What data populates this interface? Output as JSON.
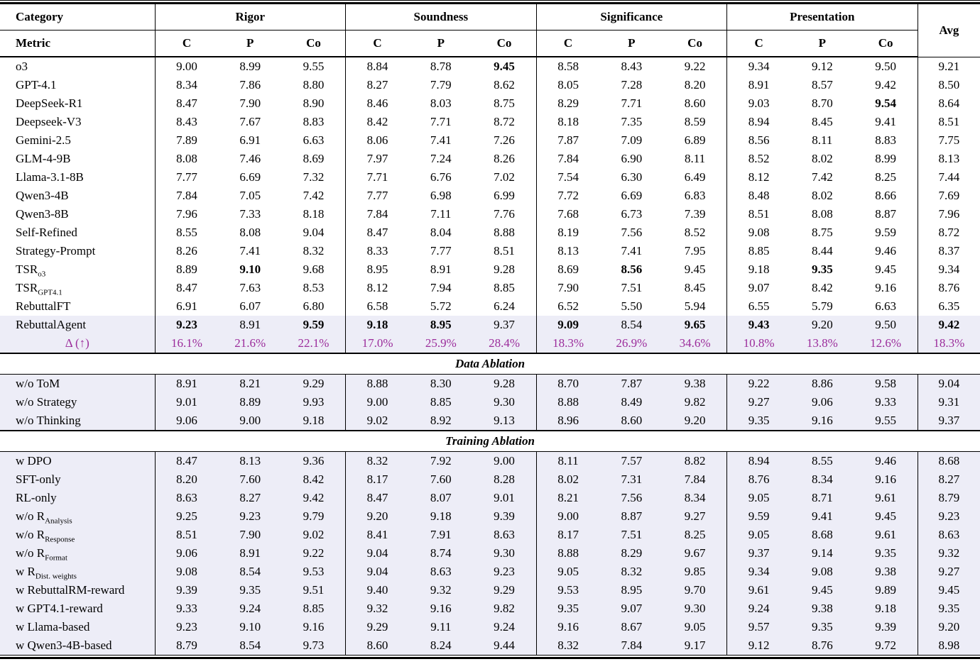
{
  "header": {
    "category_label": "Category",
    "metric_label": "Metric",
    "groups": [
      "Rigor",
      "Soundness",
      "Significance",
      "Presentation"
    ],
    "avg_label": "Avg",
    "sub_metrics": [
      "C",
      "P",
      "Co"
    ]
  },
  "colors": {
    "delta_purple": "#9B2C9B",
    "highlight_row_bg": "#EDEDF7",
    "rule_black": "#000000"
  },
  "sections": [
    {
      "title": "",
      "rows": [
        {
          "label": "o3",
          "values": [
            "9.00",
            "8.99",
            "9.55",
            "8.84",
            "8.78",
            "9.45",
            "8.58",
            "8.43",
            "9.22",
            "9.34",
            "9.12",
            "9.50",
            "9.21"
          ],
          "bold": [
            5
          ]
        },
        {
          "label": "GPT-4.1",
          "values": [
            "8.34",
            "7.86",
            "8.80",
            "8.27",
            "7.79",
            "8.62",
            "8.05",
            "7.28",
            "8.20",
            "8.91",
            "8.57",
            "9.42",
            "8.50"
          ],
          "bold": []
        },
        {
          "label": "DeepSeek-R1",
          "values": [
            "8.47",
            "7.90",
            "8.90",
            "8.46",
            "8.03",
            "8.75",
            "8.29",
            "7.71",
            "8.60",
            "9.03",
            "8.70",
            "9.54",
            "8.64"
          ],
          "bold": [
            11
          ]
        },
        {
          "label": "Deepseek-V3",
          "values": [
            "8.43",
            "7.67",
            "8.83",
            "8.42",
            "7.71",
            "8.72",
            "8.18",
            "7.35",
            "8.59",
            "8.94",
            "8.45",
            "9.41",
            "8.51"
          ],
          "bold": []
        },
        {
          "label": "Gemini-2.5",
          "values": [
            "7.89",
            "6.91",
            "6.63",
            "8.06",
            "7.41",
            "7.26",
            "7.87",
            "7.09",
            "6.89",
            "8.56",
            "8.11",
            "8.83",
            "7.75"
          ],
          "bold": []
        },
        {
          "label": "GLM-4-9B",
          "values": [
            "8.08",
            "7.46",
            "8.69",
            "7.97",
            "7.24",
            "8.26",
            "7.84",
            "6.90",
            "8.11",
            "8.52",
            "8.02",
            "8.99",
            "8.13"
          ],
          "bold": []
        },
        {
          "label": "Llama-3.1-8B",
          "values": [
            "7.77",
            "6.69",
            "7.32",
            "7.71",
            "6.76",
            "7.02",
            "7.54",
            "6.30",
            "6.49",
            "8.12",
            "7.42",
            "8.25",
            "7.44"
          ],
          "bold": []
        },
        {
          "label": "Qwen3-4B",
          "values": [
            "7.84",
            "7.05",
            "7.42",
            "7.77",
            "6.98",
            "6.99",
            "7.72",
            "6.69",
            "6.83",
            "8.48",
            "8.02",
            "8.66",
            "7.69"
          ],
          "bold": []
        },
        {
          "label": "Qwen3-8B",
          "values": [
            "7.96",
            "7.33",
            "8.18",
            "7.84",
            "7.11",
            "7.76",
            "7.68",
            "6.73",
            "7.39",
            "8.51",
            "8.08",
            "8.87",
            "7.96"
          ],
          "bold": []
        },
        {
          "label": "Self-Refined",
          "values": [
            "8.55",
            "8.08",
            "9.04",
            "8.47",
            "8.04",
            "8.88",
            "8.19",
            "7.56",
            "8.52",
            "9.08",
            "8.75",
            "9.59",
            "8.72"
          ],
          "bold": []
        },
        {
          "label": "Strategy-Prompt",
          "values": [
            "8.26",
            "7.41",
            "8.32",
            "8.33",
            "7.77",
            "8.51",
            "8.13",
            "7.41",
            "7.95",
            "8.85",
            "8.44",
            "9.46",
            "8.37"
          ],
          "bold": []
        },
        {
          "label": "TSR",
          "sub": "o3",
          "values": [
            "8.89",
            "9.10",
            "9.68",
            "8.95",
            "8.91",
            "9.28",
            "8.69",
            "8.56",
            "9.45",
            "9.18",
            "9.35",
            "9.45",
            "9.34"
          ],
          "bold": [
            1,
            7,
            10
          ]
        },
        {
          "label": "TSR",
          "sub": "GPT4.1",
          "values": [
            "8.47",
            "7.63",
            "8.53",
            "8.12",
            "7.94",
            "8.85",
            "7.90",
            "7.51",
            "8.45",
            "9.07",
            "8.42",
            "9.16",
            "8.76"
          ],
          "bold": []
        },
        {
          "label": "RebuttalFT",
          "values": [
            "6.91",
            "6.07",
            "6.80",
            "6.58",
            "5.72",
            "6.24",
            "6.52",
            "5.50",
            "5.94",
            "6.55",
            "5.79",
            "6.63",
            "6.35"
          ],
          "bold": []
        },
        {
          "label": "RebuttalAgent",
          "values": [
            "9.23",
            "8.91",
            "9.59",
            "9.18",
            "8.95",
            "9.37",
            "9.09",
            "8.54",
            "9.65",
            "9.43",
            "9.20",
            "9.50",
            "9.42"
          ],
          "bold": [
            0,
            2,
            3,
            4,
            6,
            8,
            9,
            12
          ],
          "highlight": true
        },
        {
          "label": "Δ (↑)",
          "center": true,
          "accent": true,
          "highlight": true,
          "values": [
            "16.1%",
            "21.6%",
            "22.1%",
            "17.0%",
            "25.9%",
            "28.4%",
            "18.3%",
            "26.9%",
            "34.6%",
            "10.8%",
            "13.8%",
            "12.6%",
            "18.3%"
          ],
          "bold": []
        }
      ]
    },
    {
      "title": "Data Ablation",
      "rows": [
        {
          "label": "w/o ToM",
          "highlight": true,
          "values": [
            "8.91",
            "8.21",
            "9.29",
            "8.88",
            "8.30",
            "9.28",
            "8.70",
            "7.87",
            "9.38",
            "9.22",
            "8.86",
            "9.58",
            "9.04"
          ],
          "bold": []
        },
        {
          "label": "w/o Strategy",
          "highlight": true,
          "values": [
            "9.01",
            "8.89",
            "9.93",
            "9.00",
            "8.85",
            "9.30",
            "8.88",
            "8.49",
            "9.82",
            "9.27",
            "9.06",
            "9.33",
            "9.31"
          ],
          "bold": []
        },
        {
          "label": "w/o Thinking",
          "highlight": true,
          "values": [
            "9.06",
            "9.00",
            "9.18",
            "9.02",
            "8.92",
            "9.13",
            "8.96",
            "8.60",
            "9.20",
            "9.35",
            "9.16",
            "9.55",
            "9.37"
          ],
          "bold": []
        }
      ]
    },
    {
      "title": "Training Ablation",
      "rows": [
        {
          "label": "w DPO",
          "highlight": true,
          "values": [
            "8.47",
            "8.13",
            "9.36",
            "8.32",
            "7.92",
            "9.00",
            "8.11",
            "7.57",
            "8.82",
            "8.94",
            "8.55",
            "9.46",
            "8.68"
          ],
          "bold": []
        },
        {
          "label": "SFT-only",
          "highlight": true,
          "values": [
            "8.20",
            "7.60",
            "8.42",
            "8.17",
            "7.60",
            "8.28",
            "8.02",
            "7.31",
            "7.84",
            "8.76",
            "8.34",
            "9.16",
            "8.27"
          ],
          "bold": []
        },
        {
          "label": "RL-only",
          "highlight": true,
          "values": [
            "8.63",
            "8.27",
            "9.42",
            "8.47",
            "8.07",
            "9.01",
            "8.21",
            "7.56",
            "8.34",
            "9.05",
            "8.71",
            "9.61",
            "8.79"
          ],
          "bold": []
        },
        {
          "label": "w/o R",
          "sub": "Analysis",
          "highlight": true,
          "values": [
            "9.25",
            "9.23",
            "9.79",
            "9.20",
            "9.18",
            "9.39",
            "9.00",
            "8.87",
            "9.27",
            "9.59",
            "9.41",
            "9.45",
            "9.23"
          ],
          "bold": []
        },
        {
          "label": "w/o R",
          "sub": "Response",
          "highlight": true,
          "values": [
            "8.51",
            "7.90",
            "9.02",
            "8.41",
            "7.91",
            "8.63",
            "8.17",
            "7.51",
            "8.25",
            "9.05",
            "8.68",
            "9.61",
            "8.63"
          ],
          "bold": []
        },
        {
          "label": "w/o R",
          "sub": "Format",
          "highlight": true,
          "values": [
            "9.06",
            "8.91",
            "9.22",
            "9.04",
            "8.74",
            "9.30",
            "8.88",
            "8.29",
            "9.67",
            "9.37",
            "9.14",
            "9.35",
            "9.32"
          ],
          "bold": []
        },
        {
          "label": "w R",
          "sub": "Dist. weights",
          "highlight": true,
          "values": [
            "9.08",
            "8.54",
            "9.53",
            "9.04",
            "8.63",
            "9.23",
            "9.05",
            "8.32",
            "9.85",
            "9.34",
            "9.08",
            "9.38",
            "9.27"
          ],
          "bold": []
        },
        {
          "label": "w RebuttalRM-reward",
          "highlight": true,
          "values": [
            "9.39",
            "9.35",
            "9.51",
            "9.40",
            "9.32",
            "9.29",
            "9.53",
            "8.95",
            "9.70",
            "9.61",
            "9.45",
            "9.89",
            "9.45"
          ],
          "bold": []
        },
        {
          "label": "w GPT4.1-reward",
          "highlight": true,
          "values": [
            "9.33",
            "9.24",
            "8.85",
            "9.32",
            "9.16",
            "9.82",
            "9.35",
            "9.07",
            "9.30",
            "9.24",
            "9.38",
            "9.18",
            "9.35"
          ],
          "bold": []
        },
        {
          "label": "w Llama-based",
          "highlight": true,
          "values": [
            "9.23",
            "9.10",
            "9.16",
            "9.29",
            "9.11",
            "9.24",
            "9.16",
            "8.67",
            "9.05",
            "9.57",
            "9.35",
            "9.39",
            "9.20"
          ],
          "bold": []
        },
        {
          "label": "w Qwen3-4B-based",
          "highlight": true,
          "values": [
            "8.79",
            "8.54",
            "9.73",
            "8.60",
            "8.24",
            "9.44",
            "8.32",
            "7.84",
            "9.17",
            "9.12",
            "8.76",
            "9.72",
            "8.98"
          ],
          "bold": []
        }
      ]
    }
  ]
}
